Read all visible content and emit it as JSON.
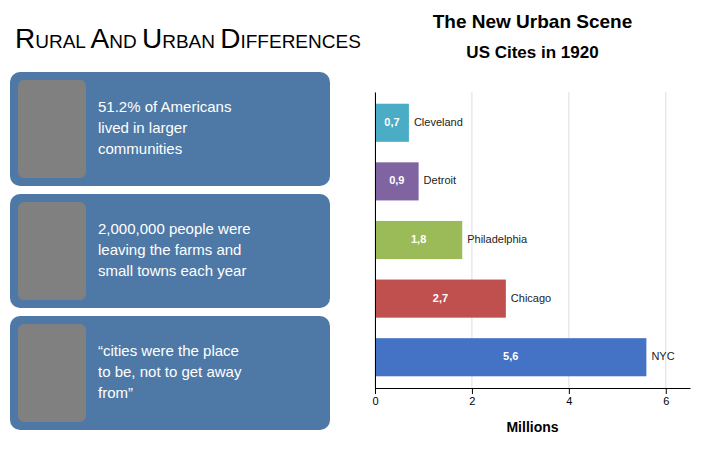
{
  "title": "RURAL AND URBAN DIFFERENCES",
  "annotations": [
    "51.2% of Americans\nlived in larger\ncommunities",
    "2,000,000 people were\nleaving the farms and\nsmall towns each year",
    "“cities were the place\nto be, not to get away\nfrom”"
  ],
  "chart_data": {
    "type": "bar",
    "orientation": "horizontal",
    "title": "The New Urban Scene",
    "subtitle": "US Cites in 1920",
    "categories": [
      "NYC",
      "Chicago",
      "Philadelphia",
      "Detroit",
      "Cleveland"
    ],
    "values": [
      5.6,
      2.7,
      1.8,
      0.9,
      0.7
    ],
    "value_labels": [
      "5,6",
      "2,7",
      "1,8",
      "0,9",
      "0,7"
    ],
    "data_labels": true,
    "colors": [
      "#4472C4",
      "#C0504D",
      "#9BBB59",
      "#8064A2",
      "#4BACC6"
    ],
    "xlabel": "Millions",
    "xlim": [
      0,
      6.5
    ],
    "xticks": [
      0,
      2,
      4,
      6
    ],
    "grid": true,
    "tick_labels": "x"
  }
}
